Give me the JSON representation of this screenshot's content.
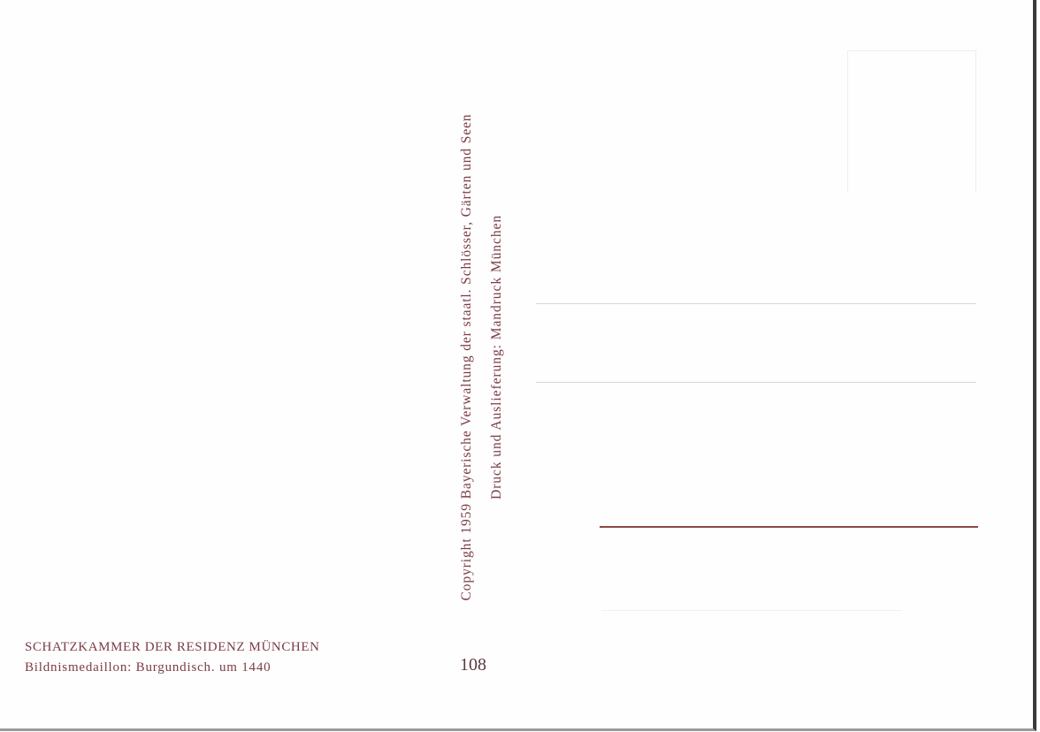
{
  "caption": {
    "title": "SCHATZKAMMER DER RESIDENZ MÜNCHEN",
    "subtitle": "Bildnismedaillon: Burgundisch. um 1440",
    "number": "108"
  },
  "imprint": {
    "copyright": "Copyright 1959 Bayerische Verwaltung der staatl. Schlösser, Gärten und Seen",
    "printer": "Druck und Auslieferung: Mandruck München"
  },
  "colors": {
    "text": "#7b3c46",
    "accent_line": "#8a4a44"
  }
}
